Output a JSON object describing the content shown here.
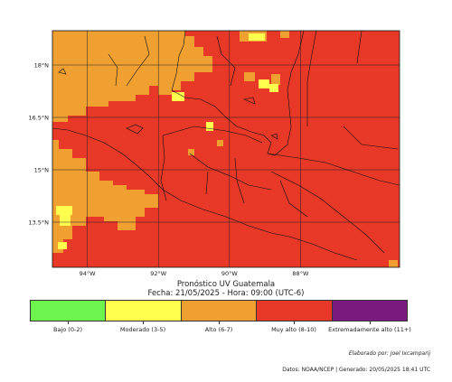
{
  "title": {
    "line1": "Pronóstico UV Guatemala",
    "line2": "Fecha: 21/05/2025 - Hora: 09:00 (UTC-6)"
  },
  "axes": {
    "lat_labels": [
      "18°N",
      "16.5°N",
      "15°N",
      "13.5°N"
    ],
    "lon_labels": [
      "94°W",
      "92°W",
      "90°W",
      "88°W"
    ],
    "lon_range": [
      -95,
      -85.5
    ],
    "lat_range": [
      12.0,
      19.0
    ]
  },
  "legend": {
    "categories": [
      {
        "label": "Bajo (0-2)",
        "color": "#6ef54d"
      },
      {
        "label": "Moderado (3-5)",
        "color": "#ffff4d"
      },
      {
        "label": "Alto (6-7)",
        "color": "#f0a030"
      },
      {
        "label": "Muy alto (8-10)",
        "color": "#e83828"
      },
      {
        "label": "Extremadamente alto (11+)",
        "color": "#7a1a7e"
      }
    ]
  },
  "credits": {
    "author": "Elaborado por: Joel Ixcamparij",
    "source": "Datos: NOAA/NCEP | Generado: 20/05/2025 18:41 UTC"
  },
  "colors": {
    "very_high": "#e83828",
    "high": "#f0a030",
    "moderate": "#ffff4d"
  }
}
